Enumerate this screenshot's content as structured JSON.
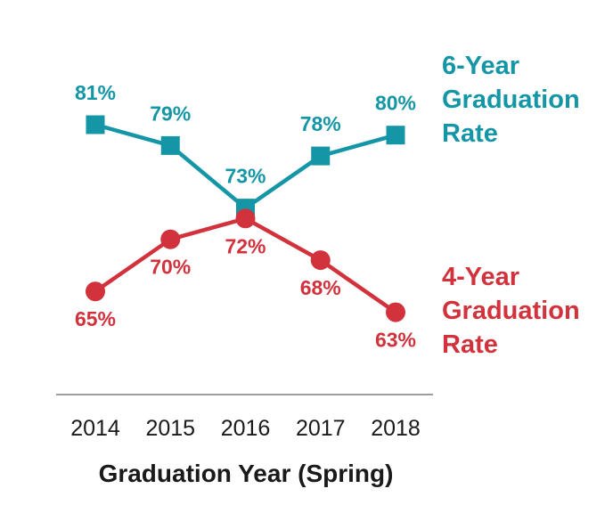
{
  "chart_data": {
    "type": "line",
    "x": [
      "2014",
      "2015",
      "2016",
      "2017",
      "2018"
    ],
    "xlabel": "Graduation Year (Spring)",
    "ylabel": "",
    "ylim": [
      55,
      90
    ],
    "grid": false,
    "series": [
      {
        "name": "6-Year Graduation Rate",
        "legend_lines": [
          "6-Year",
          "Graduation",
          "Rate"
        ],
        "marker": "square",
        "color": "#1596a6",
        "values": [
          81,
          79,
          73,
          78,
          80
        ],
        "labels": [
          "81%",
          "79%",
          "73%",
          "78%",
          "80%"
        ],
        "label_position": [
          "above",
          "above",
          "above",
          "above",
          "above"
        ]
      },
      {
        "name": "4-Year Graduation Rate",
        "legend_lines": [
          "4-Year",
          "Graduation",
          "Rate"
        ],
        "marker": "circle",
        "color": "#d1323c",
        "values": [
          65,
          70,
          72,
          68,
          63
        ],
        "labels": [
          "65%",
          "70%",
          "72%",
          "68%",
          "63%"
        ],
        "label_position": [
          "below",
          "below",
          "below",
          "below",
          "below"
        ]
      }
    ]
  }
}
